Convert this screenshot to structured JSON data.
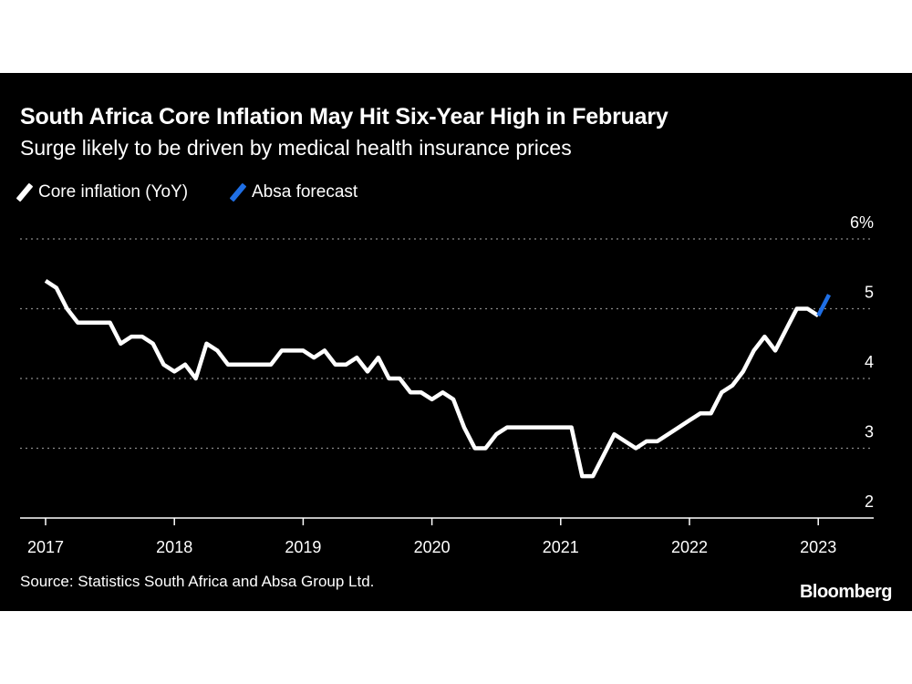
{
  "title": "South Africa Core Inflation May Hit Six-Year High in February",
  "subtitle": "Surge likely to be driven by medical health insurance prices",
  "source": "Source: Statistics South Africa and Absa Group Ltd.",
  "brand": "Bloomberg",
  "colors": {
    "background": "#000000",
    "series_core": "#ffffff",
    "series_forecast": "#1f6fe5",
    "grid": "#8a8a8a"
  },
  "chart_data": {
    "type": "line",
    "title": "South Africa Core Inflation May Hit Six-Year High in February",
    "subtitle": "Surge likely to be driven by medical health insurance prices",
    "xlabel": "",
    "ylabel": "",
    "ylim": [
      2,
      6
    ],
    "y_ticks": [
      2,
      3,
      4,
      5,
      6
    ],
    "y_tick_labels": [
      "2",
      "3",
      "4",
      "5",
      "6%"
    ],
    "x_ticks": [
      2017,
      2018,
      2019,
      2020,
      2021,
      2022,
      2023
    ],
    "x_tick_labels": [
      "2017",
      "2018",
      "2019",
      "2020",
      "2021",
      "2022",
      "2023"
    ],
    "grid": true,
    "legend_position": "top-left",
    "series": [
      {
        "name": "Core inflation (YoY)",
        "color": "#ffffff",
        "x": [
          "2017-01",
          "2017-02",
          "2017-03",
          "2017-04",
          "2017-05",
          "2017-06",
          "2017-07",
          "2017-08",
          "2017-09",
          "2017-10",
          "2017-11",
          "2017-12",
          "2018-01",
          "2018-02",
          "2018-03",
          "2018-04",
          "2018-05",
          "2018-06",
          "2018-07",
          "2018-08",
          "2018-09",
          "2018-10",
          "2018-11",
          "2018-12",
          "2019-01",
          "2019-02",
          "2019-03",
          "2019-04",
          "2019-05",
          "2019-06",
          "2019-07",
          "2019-08",
          "2019-09",
          "2019-10",
          "2019-11",
          "2019-12",
          "2020-01",
          "2020-02",
          "2020-03",
          "2020-04",
          "2020-05",
          "2020-06",
          "2020-07",
          "2020-08",
          "2020-09",
          "2020-10",
          "2020-11",
          "2020-12",
          "2021-01",
          "2021-02",
          "2021-03",
          "2021-04",
          "2021-05",
          "2021-06",
          "2021-07",
          "2021-08",
          "2021-09",
          "2021-10",
          "2021-11",
          "2021-12",
          "2022-01",
          "2022-02",
          "2022-03",
          "2022-04",
          "2022-05",
          "2022-06",
          "2022-07",
          "2022-08",
          "2022-09",
          "2022-10",
          "2022-11",
          "2022-12",
          "2023-01"
        ],
        "values": [
          5.4,
          5.3,
          5.0,
          4.8,
          4.8,
          4.8,
          4.8,
          4.5,
          4.6,
          4.6,
          4.5,
          4.2,
          4.1,
          4.2,
          4.0,
          4.5,
          4.4,
          4.2,
          4.2,
          4.2,
          4.2,
          4.2,
          4.4,
          4.4,
          4.4,
          4.3,
          4.4,
          4.2,
          4.2,
          4.3,
          4.1,
          4.3,
          4.0,
          4.0,
          3.8,
          3.8,
          3.7,
          3.8,
          3.7,
          3.3,
          3.0,
          3.0,
          3.2,
          3.3,
          3.3,
          3.3,
          3.3,
          3.3,
          3.3,
          3.3,
          2.6,
          2.6,
          2.9,
          3.2,
          3.1,
          3.0,
          3.1,
          3.1,
          3.2,
          3.3,
          3.4,
          3.5,
          3.5,
          3.8,
          3.9,
          4.1,
          4.4,
          4.6,
          4.4,
          4.7,
          5.0,
          5.0,
          4.9
        ]
      },
      {
        "name": "Absa forecast",
        "color": "#1f6fe5",
        "x": [
          "2023-01",
          "2023-02"
        ],
        "values": [
          4.9,
          5.2
        ]
      }
    ]
  }
}
